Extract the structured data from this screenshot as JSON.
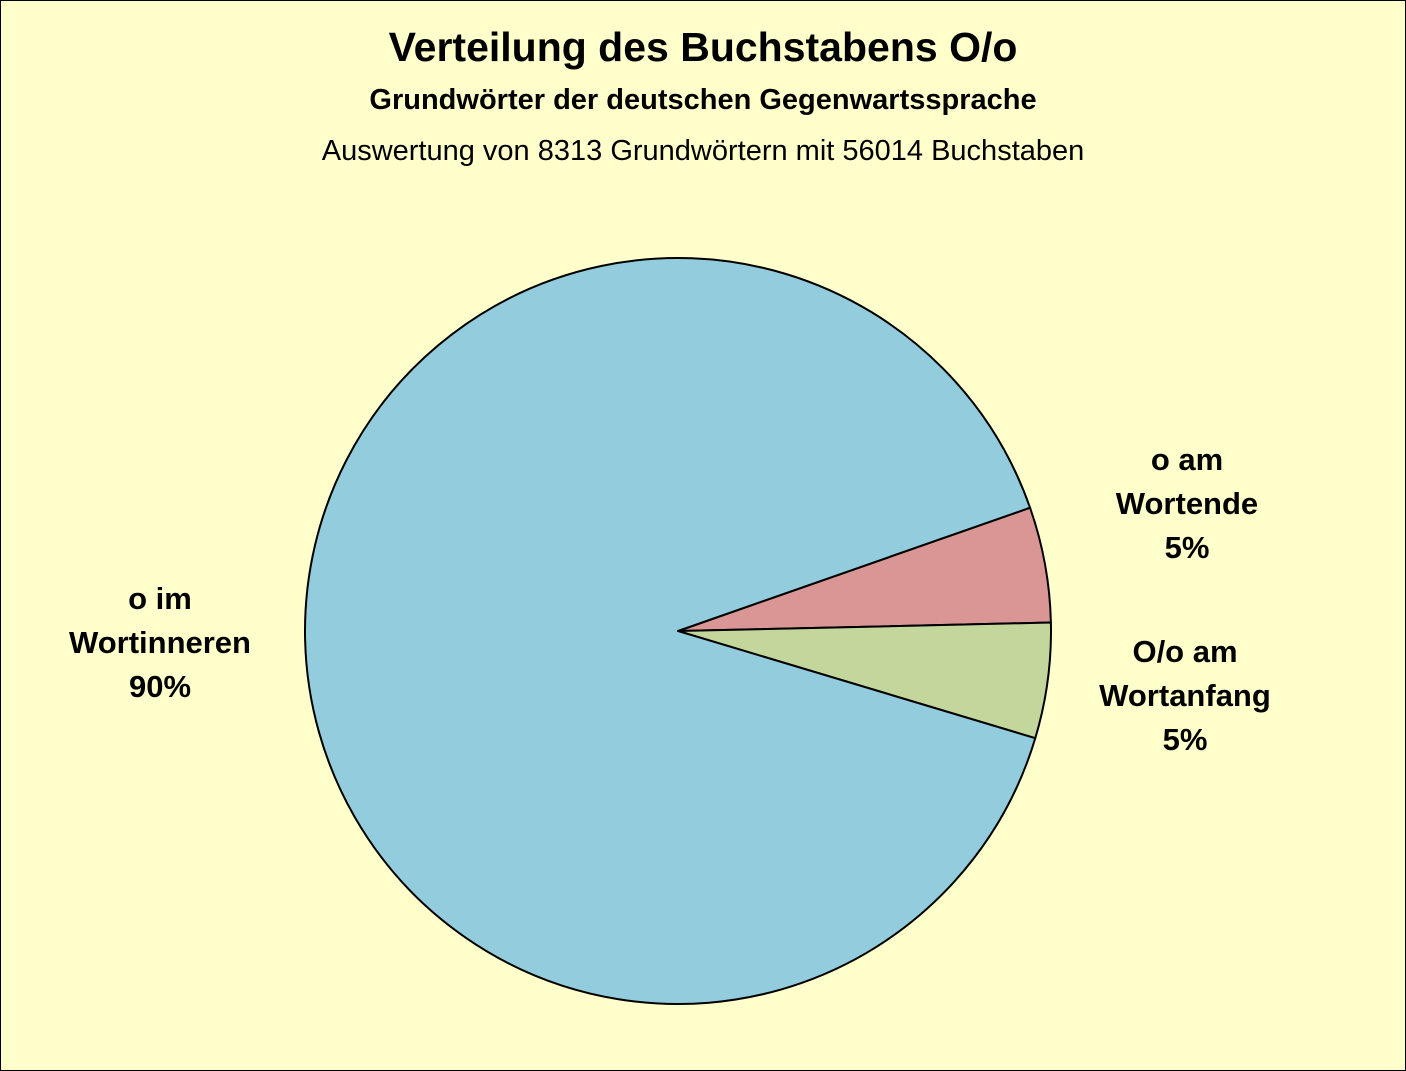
{
  "colors": {
    "background": "#ffffcc",
    "outline": "#000000"
  },
  "chart_data": {
    "type": "pie",
    "title": "Verteilung des Buchstabens O/o",
    "subtitle": "Grundwörter der deutschen Gegenwartssprache",
    "caption": "Auswertung von 8313 Grundwörtern mit 56014 Buchstaben",
    "start_angle_deg": -19.3,
    "direction": "clockwise",
    "slices": [
      {
        "label_lines": [
          "o am",
          "Wortende"
        ],
        "value": 5,
        "value_label": "5%",
        "color": "#d99694"
      },
      {
        "label_lines": [
          "O/o am",
          "Wortanfang"
        ],
        "value": 5,
        "value_label": "5%",
        "color": "#c3d69b"
      },
      {
        "label_lines": [
          "o im",
          "Wortinneren"
        ],
        "value": 90,
        "value_label": "90%",
        "color": "#93cddd"
      }
    ]
  }
}
